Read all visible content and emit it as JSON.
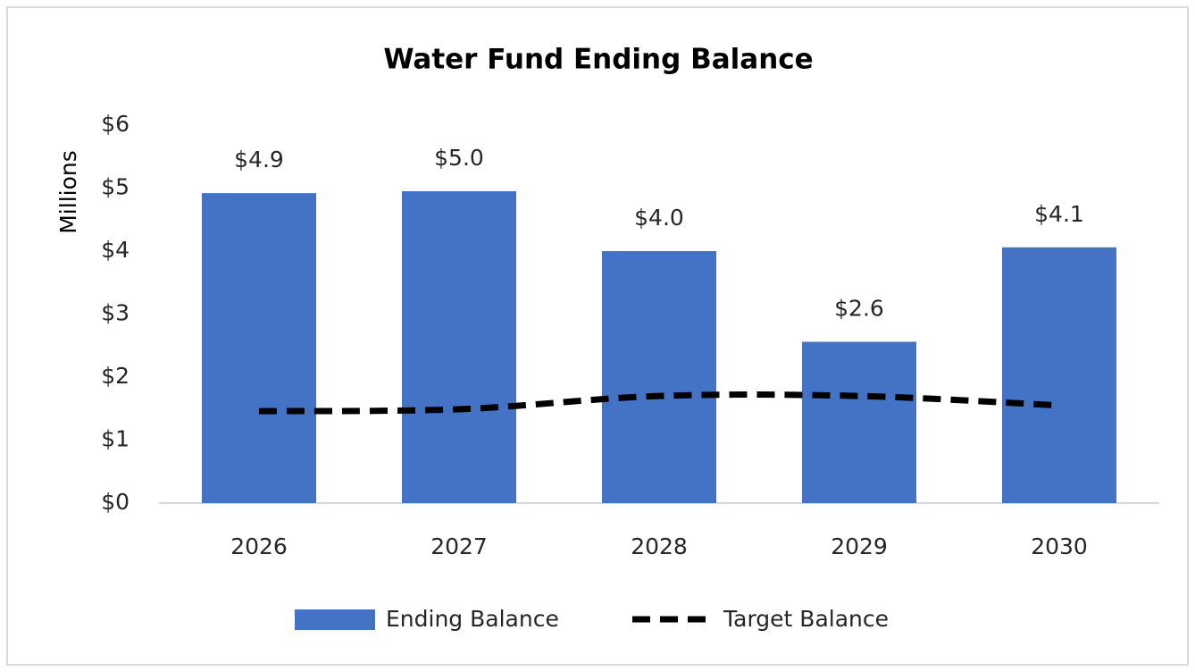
{
  "chart_data": {
    "type": "bar",
    "title": "Water Fund Ending Balance",
    "y_label": "Millions",
    "categories": [
      "2026",
      "2027",
      "2028",
      "2029",
      "2030"
    ],
    "series": [
      {
        "name": "Ending Balance",
        "type": "bar",
        "color": "#4472c4",
        "values": [
          4.92,
          4.95,
          4.0,
          2.56,
          4.06
        ],
        "value_labels": [
          "$4.9",
          "$5.0",
          "$4.0",
          "$2.6",
          "$4.1"
        ]
      },
      {
        "name": "Target Balance",
        "type": "line",
        "color": "#000000",
        "values": [
          1.46,
          1.49,
          1.7,
          1.7,
          1.55
        ]
      }
    ],
    "ylim": [
      0,
      6
    ],
    "yticks": [
      {
        "value": 0,
        "label": "$0"
      },
      {
        "value": 1,
        "label": "$1"
      },
      {
        "value": 2,
        "label": "$2"
      },
      {
        "value": 3,
        "label": "$3"
      },
      {
        "value": 4,
        "label": "$4"
      },
      {
        "value": 5,
        "label": "$5"
      },
      {
        "value": 6,
        "label": "$6"
      }
    ],
    "legend": "bottom"
  }
}
